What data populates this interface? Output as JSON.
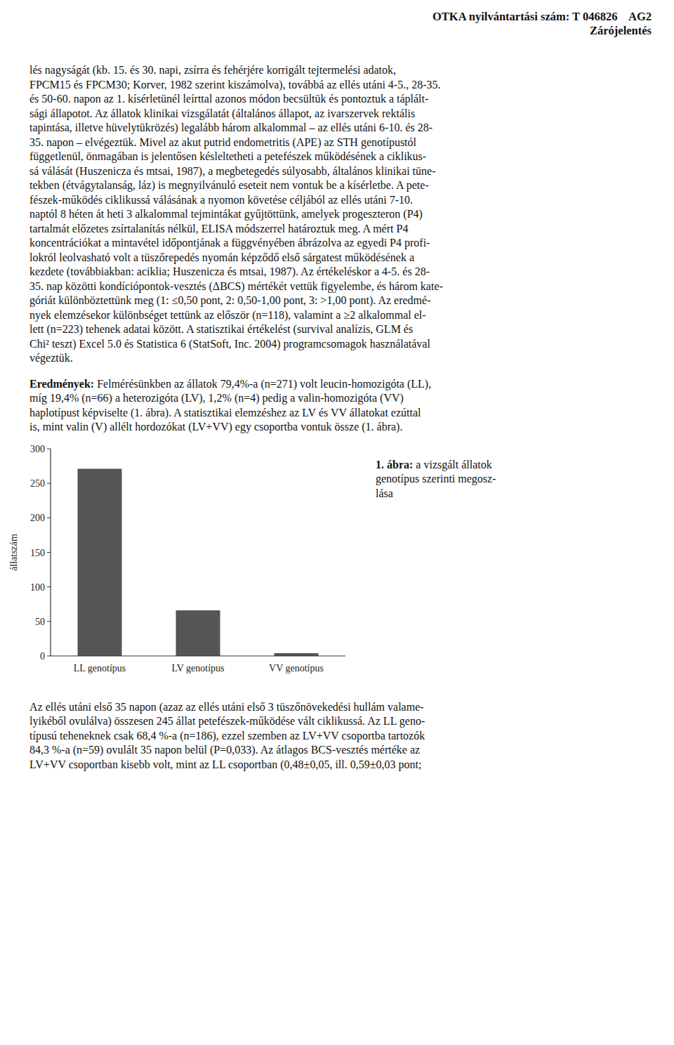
{
  "header_lines": [
    "OTKA nyilvántartási szám: T 046826    AG2",
    "Zárójelentés"
  ],
  "body_lines": [
    "lés nagyságát (kb. 15. és 30. napi, zsírra és fehérjére korrigált tejtermelési adatok,",
    "FPCM15 és FPCM30; Korver, 1982 szerint kiszámolva), továbbá az ellés utáni 4-5., 28-35.",
    "és 50-60. napon az 1. kísérletünél leírttal azonos módon becsültük és pontoztuk a táplált-",
    "sági állapotot. Az állatok klinikai vizsgálatát (általános állapot, az ivarszervek rektális",
    "tapintása, illetve hüvelytükrözés) legalább három alkalommal – az ellés utáni 6-10. és 28-",
    "35. napon – elvégeztük. Mivel az akut putrid endometritis (APE) az STH genotípustól",
    "függetlenül, önmagában is jelentősen késleltetheti a petefészek működésének a ciklikus-",
    "sá válását (Huszenicza és mtsai, 1987), a megbetegedés súlyosabb, általános klinikai tüne-",
    "tekben (étvágytalanság, láz) is megnyilvánuló eseteit nem vontuk be a kísérletbe. A pete-",
    "fészek-működés ciklikussá válásának a nyomon követése céljából az ellés utáni 7-10.",
    "naptól 8 héten át heti 3 alkalommal tejmintákat gyűjtöttünk, amelyek progeszteron (P4)",
    "tartalmát előzetes zsírtalanítás nélkül, ELISA módszerrel határoztuk meg. A mért P4",
    "koncentrációkat a mintavétel időpontjának a függvényében ábrázolva az egyedi P4 profi-",
    "lokról leolvasható volt a tüszőrepedés nyomán képződő első sárgatest működésének a",
    "kezdete (továbbiakban: aciklia; Huszenicza és mtsai, 1987). Az értékeléskor a 4-5. és 28-",
    "35. nap közötti kondíciópontok-vesztés (ΔBCS) mértékét vettük figyelembe, és három kate-",
    "góriát különböztettünk meg (1: ≤0,50 pont, 2: 0,50-1,00 pont, 3: >1,00 pont). Az eredmé-",
    "nyek elemzésekor különbséget tettünk az először (n=118), valamint a ≥2 alkalommal el-",
    "lett (n=223) tehenek adatai között. A statisztikai értékelést (survival analízis, GLM és",
    "Chi² teszt) Excel 5.0 és Statistica 6 (StatSoft, Inc. 2004) programcsomagok használatával",
    "végeztük."
  ],
  "results_bold": "Eredmények:",
  "results_lines": [
    " Felmérésünkben az állatok 79,4%-a (n=271) volt leucin-homozigóta (LL),",
    "míg 19,4% (n=66) a heterozigóta (LV), 1,2% (n=4) pedig a valin-homozigóta (VV)",
    "haplotípust képviselte (1. ábra). A statisztikai elemzéshez az LV és VV állatokat ezúttal",
    "is, mint valin (V) allélt hordozókat (LV+VV) egy csoportba vontuk össze (1. ábra)."
  ],
  "caption_bold": "1. ábra:",
  "caption_lines": [
    " a vizsgált állatok",
    "genotípus szerinti megosz-",
    "lása"
  ],
  "bottom_lines": [
    "Az ellés utáni első 35 napon (azaz az ellés utáni első 3 tüszőnövekedési hullám valame-",
    "lyikéből ovulálva) összesen 245 állat petefészek-működése vált ciklikussá. Az LL geno-",
    "típusú teheneknek csak 68,4 %-a (n=186), ezzel szemben az LV+VV csoportba tartozók",
    "84,3 %-a (n=59) ovulált 35 napon belül (P=0,033). Az átlagos BCS-vesztés mértéke az",
    "LV+VV csoportban kisebb volt, mint az LL csoportban (0,48±0,05, ill. 0,59±0,03 pont;"
  ],
  "chart_data": {
    "type": "bar",
    "categories": [
      "LL genotípus",
      "LV genotípus",
      "VV genotípus"
    ],
    "values": [
      271,
      66,
      4
    ],
    "color": "#555555",
    "ylabel": "állatszám",
    "ylim": [
      0,
      300
    ],
    "yticks": [
      0,
      50,
      100,
      150,
      200,
      250,
      300
    ],
    "grid": false
  }
}
